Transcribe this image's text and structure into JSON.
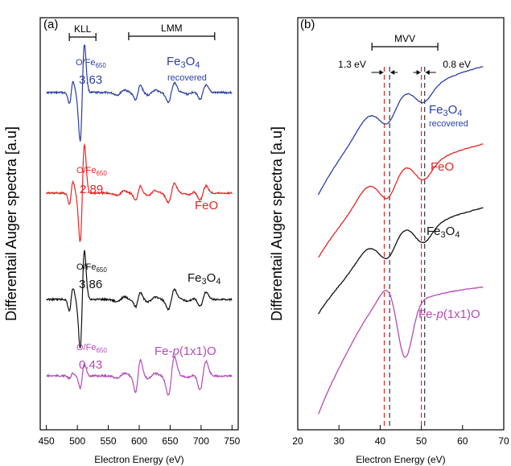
{
  "figure": {
    "axis_color": "#000000"
  },
  "chart_data": [
    {
      "type": "line",
      "panel_label": "(a)",
      "xlabel": "Electron Energy (eV)",
      "ylabel": "Differentail Auger spectra [a.u]",
      "xlim": [
        440,
        760
      ],
      "xticks": [
        450,
        500,
        550,
        600,
        650,
        700,
        750
      ],
      "x_tick_labels": [
        "450",
        "500",
        "550",
        "600",
        "650",
        "700",
        "750"
      ],
      "yticks": "none",
      "grid": false,
      "regions": [
        {
          "label": "KLL",
          "x_start": 487,
          "x_end": 530
        },
        {
          "label": "LMM",
          "x_start": 583,
          "x_end": 722
        }
      ],
      "series": [
        {
          "name": "Fe3O4 recovered",
          "name_main": "Fe",
          "name_sub1": "3",
          "name_mid": "O",
          "name_sub2": "4",
          "name_extra": "recovered",
          "ratio_label": "O/Fe",
          "ratio_sub": "650",
          "ratio_value": "3.63",
          "color": "#2b3fa6"
        },
        {
          "name": "FeO",
          "name_main": "FeO",
          "ratio_label": "O/Fe",
          "ratio_sub": "650",
          "ratio_value": "2.89",
          "color": "#e82525"
        },
        {
          "name": "Fe3O4",
          "name_main": "Fe",
          "name_sub1": "3",
          "name_mid": "O",
          "name_sub2": "4",
          "ratio_label": "O/Fe",
          "ratio_sub": "650",
          "ratio_value": "3.86",
          "color": "#111111"
        },
        {
          "name": "Fe-p(1x1)O",
          "name_main": "Fe-",
          "name_italic": "p",
          "name_tail": "(1x1)O",
          "ratio_label": "O/Fe",
          "ratio_sub": "650",
          "ratio_value": "0.43",
          "color": "#b54bb5"
        }
      ]
    },
    {
      "type": "line",
      "panel_label": "(b)",
      "xlabel": "Electron Energy (eV)",
      "ylabel": "Differentail Auger spectra [a.u]",
      "xlim": [
        20,
        70
      ],
      "xticks": [
        20,
        30,
        40,
        50,
        60,
        70
      ],
      "x_tick_labels": [
        "20",
        "30",
        "40",
        "50",
        "60",
        "70"
      ],
      "yticks": "none",
      "grid": false,
      "regions": [
        {
          "label": "MVV",
          "x_start": 38,
          "x_end": 54
        }
      ],
      "annotations": [
        {
          "text": "1.3 eV",
          "x1": 41.0,
          "x2": 42.3
        },
        {
          "text": "0.8 eV",
          "x1": 50.0,
          "x2": 50.8
        }
      ],
      "dashed_lines": [
        {
          "x": 41.0,
          "color": "#e82525"
        },
        {
          "x": 42.3,
          "color": "#333333"
        },
        {
          "x": 50.0,
          "color": "#e82525"
        },
        {
          "x": 50.8,
          "color": "#333333"
        }
      ],
      "series": [
        {
          "name": "Fe3O4 recovered",
          "name_main": "Fe",
          "name_sub1": "3",
          "name_mid": "O",
          "name_sub2": "4",
          "name_extra": "recovered",
          "color": "#2b3fa6"
        },
        {
          "name": "FeO",
          "name_main": "FeO",
          "color": "#e82525"
        },
        {
          "name": "Fe3O4",
          "name_main": "Fe",
          "name_sub1": "3",
          "name_mid": "O",
          "name_sub2": "4",
          "color": "#111111"
        },
        {
          "name": "Fe-p(1x1)O",
          "name_main": "Fe-",
          "name_italic": "p",
          "name_tail": "(1x1)O",
          "color": "#b54bb5"
        }
      ]
    }
  ]
}
